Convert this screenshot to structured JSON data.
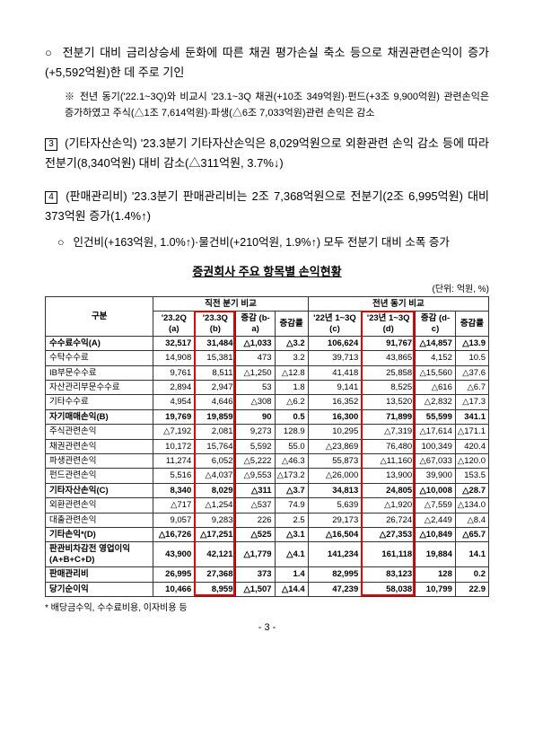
{
  "para1": {
    "bullet": "○",
    "text": "전분기 대비 금리상승세 둔화에 따른 채권 평가손실 축소 등으로 채권관련손익이 증가(+5,592억원)한 데 주로 기인"
  },
  "subnote1": {
    "mark": "※",
    "text": "전년 동기('22.1~3Q)와 비교시 '23.1~3Q 채권(+10조 349억원)·펀드(+3조 9,900억원) 관련손익은 증가하였고 주식(△1조 7,614억원)·파생(△6조 7,033억원)관련 손익은 감소"
  },
  "section3": {
    "num": "3",
    "line1": "(기타자산손익) '23.3분기 기타자산손익은 8,029억원으로 외환관련 손익 감소 등에 따라 전분기(8,340억원) 대비 감소(△311억원, 3.7%↓)"
  },
  "section4": {
    "num": "4",
    "line1": "(판매관리비) '23.3분기 판매관리비는 2조 7,368억원으로 전분기(2조 6,995억원) 대비 373억원 증가(1.4%↑)"
  },
  "para2": {
    "bullet": "○",
    "text": "인건비(+163억원, 1.0%↑)·물건비(+210억원, 1.9%↑) 모두 전분기 대비 소폭 증가"
  },
  "tableTitle": "증권회사 주요 항목별 손익현황",
  "unit": "(단위: 억원, %)",
  "headers": {
    "col": "구분",
    "grp1": "직전 분기 비교",
    "grp2": "전년 동기 비교",
    "h1": "'23.2Q\n(a)",
    "h2": "'23.3Q\n(b)",
    "h3": "증감\n(b-a)",
    "h4": "증감률",
    "h5": "'22년\n1~3Q\n(c)",
    "h6": "'23년\n1~3Q\n(d)",
    "h7": "증감\n(d-c)",
    "h8": "증감률"
  },
  "rows": [
    {
      "label": "수수료수익(A)",
      "cells": [
        "32,517",
        "31,484",
        "△1,033",
        "△3.2",
        "106,624",
        "91,767",
        "△14,857",
        "△13.9"
      ],
      "bold": true
    },
    {
      "label": "  수탁수수료",
      "cells": [
        "14,908",
        "15,381",
        "473",
        "3.2",
        "39,713",
        "43,865",
        "4,152",
        "10.5"
      ]
    },
    {
      "label": "  IB부문수수료",
      "cells": [
        "9,761",
        "8,511",
        "△1,250",
        "△12.8",
        "41,418",
        "25,858",
        "△15,560",
        "△37.6"
      ]
    },
    {
      "label": "  자산관리부문수수료",
      "cells": [
        "2,894",
        "2,947",
        "53",
        "1.8",
        "9,141",
        "8,525",
        "△616",
        "△6.7"
      ]
    },
    {
      "label": "  기타수수료",
      "cells": [
        "4,954",
        "4,646",
        "△308",
        "△6.2",
        "16,352",
        "13,520",
        "△2,832",
        "△17.3"
      ]
    },
    {
      "label": "자기매매손익(B)",
      "cells": [
        "19,769",
        "19,859",
        "90",
        "0.5",
        "16,300",
        "71,899",
        "55,599",
        "341.1"
      ],
      "bold": true
    },
    {
      "label": "  주식관련손익",
      "cells": [
        "△7,192",
        "2,081",
        "9,273",
        "128.9",
        "10,295",
        "△7,319",
        "△17,614",
        "△171.1"
      ]
    },
    {
      "label": "  채권관련손익",
      "cells": [
        "10,172",
        "15,764",
        "5,592",
        "55.0",
        "△23,869",
        "76,480",
        "100,349",
        "420.4"
      ]
    },
    {
      "label": "  파생관련손익",
      "cells": [
        "11,274",
        "6,052",
        "△5,222",
        "△46.3",
        "55,873",
        "△11,160",
        "△67,033",
        "△120.0"
      ]
    },
    {
      "label": "  펀드관련손익",
      "cells": [
        "5,516",
        "△4,037",
        "△9,553",
        "△173.2",
        "△26,000",
        "13,900",
        "39,900",
        "153.5"
      ]
    },
    {
      "label": "기타자산손익(C)",
      "cells": [
        "8,340",
        "8,029",
        "△311",
        "△3.7",
        "34,813",
        "24,805",
        "△10,008",
        "△28.7"
      ],
      "bold": true
    },
    {
      "label": "  외환관련손익",
      "cells": [
        "△717",
        "△1,254",
        "△537",
        "74.9",
        "5,639",
        "△1,920",
        "△7,559",
        "△134.0"
      ]
    },
    {
      "label": "  대출관련손익",
      "cells": [
        "9,057",
        "9,283",
        "226",
        "2.5",
        "29,173",
        "26,724",
        "△2,449",
        "△8.4"
      ]
    },
    {
      "label": "기타손익*(D)",
      "cells": [
        "△16,726",
        "△17,251",
        "△525",
        "△3.1",
        "△16,504",
        "△27,353",
        "△10,849",
        "△65.7"
      ],
      "bold": true
    },
    {
      "label": "판관비차감전\n영업이익(A+B+C+D)",
      "cells": [
        "43,900",
        "42,121",
        "△1,779",
        "△4.1",
        "141,234",
        "161,118",
        "19,884",
        "14.1"
      ],
      "bold": true
    },
    {
      "label": "판매관리비",
      "cells": [
        "26,995",
        "27,368",
        "373",
        "1.4",
        "82,995",
        "83,123",
        "128",
        "0.2"
      ],
      "bold": true
    },
    {
      "label": "당기순이익",
      "cells": [
        "10,466",
        "8,959",
        "△1,507",
        "△14.4",
        "47,239",
        "58,038",
        "10,799",
        "22.9"
      ],
      "bold": true
    }
  ],
  "footnote": "* 배당금수익, 수수료비용, 이자비용 등",
  "pageNum": "- 3 -"
}
